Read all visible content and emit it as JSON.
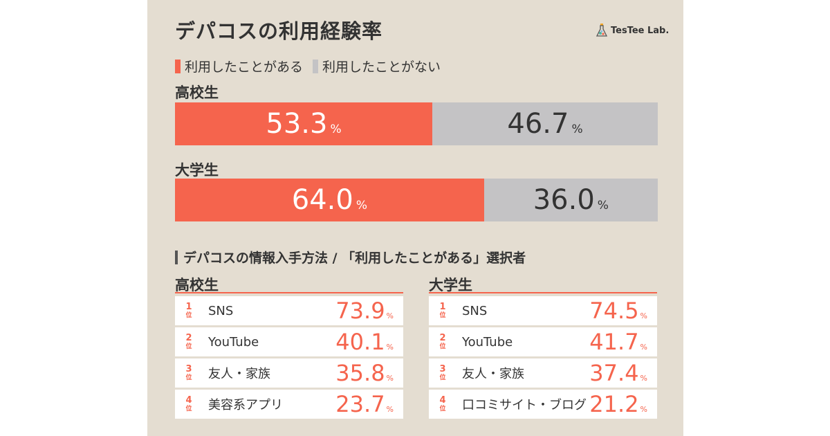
{
  "title": "デパコスの利用経験率",
  "logo": {
    "text": "TesTee Lab."
  },
  "legend": [
    {
      "label": "利用したことがある",
      "color": "#f5644d"
    },
    {
      "label": "利用したことがない",
      "color": "#c4c3c5"
    }
  ],
  "chart_data": {
    "type": "bar",
    "orientation": "horizontal-stacked",
    "categories": [
      "高校生",
      "大学生"
    ],
    "series": [
      {
        "name": "利用したことがある",
        "values": [
          53.3,
          64.0
        ],
        "labels": [
          "53.3",
          "64.0"
        ]
      },
      {
        "name": "利用したことがない",
        "values": [
          46.7,
          36.0
        ],
        "labels": [
          "46.7",
          "36.0"
        ]
      }
    ],
    "unit": "%"
  },
  "section": {
    "title": "デパコスの情報入手方法 / 「利用したことがある」選択者"
  },
  "rankings": [
    {
      "group": "高校生",
      "items": [
        {
          "rank": "1",
          "name": "SNS",
          "value": "73.9"
        },
        {
          "rank": "2",
          "name": "YouTube",
          "value": "40.1"
        },
        {
          "rank": "3",
          "name": "友人・家族",
          "value": "35.8"
        },
        {
          "rank": "4",
          "name": "美容系アプリ",
          "value": "23.7"
        }
      ]
    },
    {
      "group": "大学生",
      "items": [
        {
          "rank": "1",
          "name": "SNS",
          "value": "74.5"
        },
        {
          "rank": "2",
          "name": "YouTube",
          "value": "41.7"
        },
        {
          "rank": "3",
          "name": "友人・家族",
          "value": "37.4"
        },
        {
          "rank": "4",
          "name": "口コミサイト・ブログ",
          "value": "21.2"
        }
      ]
    }
  ],
  "rank_suffix": "位",
  "pct_symbol": "%"
}
